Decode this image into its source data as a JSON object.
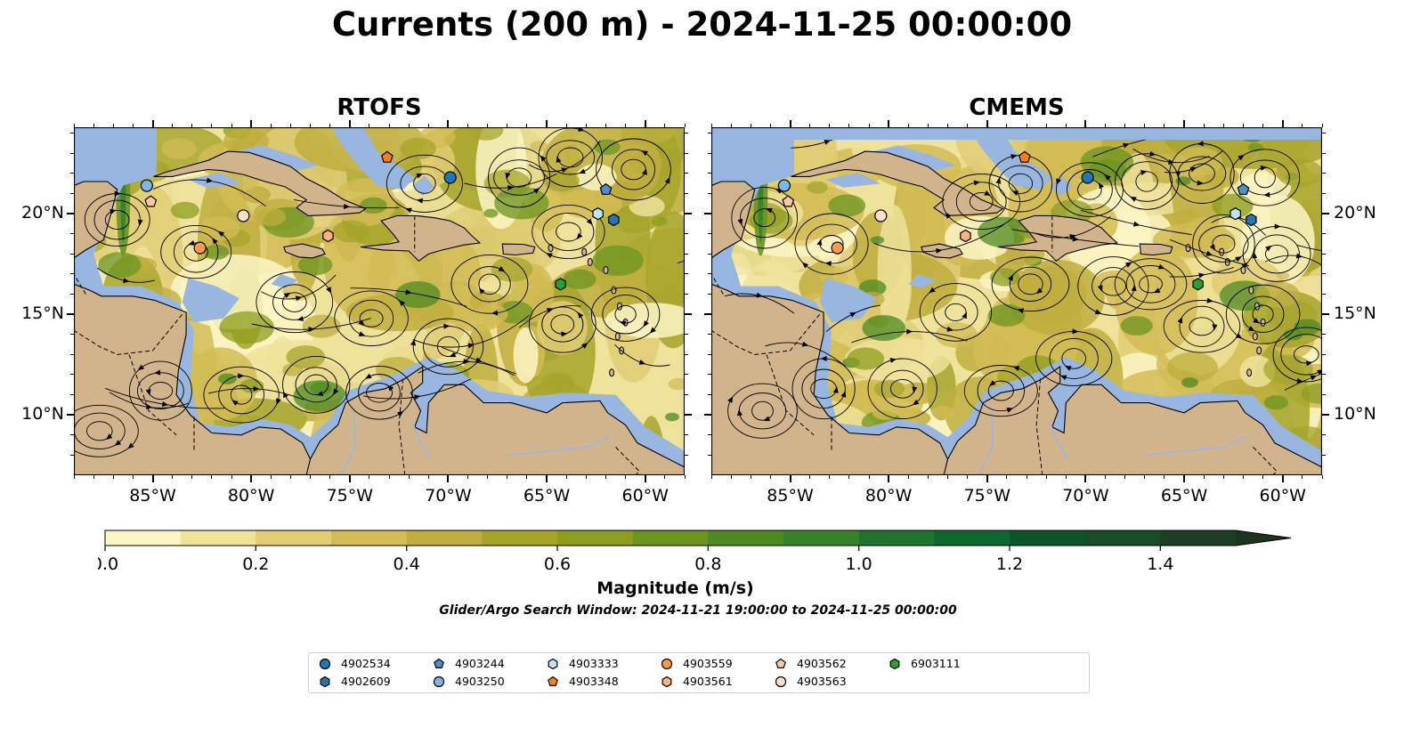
{
  "title": "Currents (200 m) - 2024-11-25 00:00:00",
  "panels": [
    {
      "name": "RTOFS"
    },
    {
      "name": "CMEMS"
    }
  ],
  "axes": {
    "lon_ticks": [
      "85°W",
      "80°W",
      "75°W",
      "70°W",
      "65°W",
      "60°W"
    ],
    "lat_ticks": [
      "20°N",
      "15°N",
      "10°N"
    ]
  },
  "colorbar": {
    "label": "Magnitude (m/s)",
    "ticks": [
      "0.0",
      "0.2",
      "0.4",
      "0.6",
      "0.8",
      "1.0",
      "1.2",
      "1.4"
    ],
    "colors": [
      "#fbf6c5",
      "#efe29a",
      "#e0cd74",
      "#d2bc55",
      "#bfae3e",
      "#a7a42c",
      "#8e9d1f",
      "#6c9420",
      "#4e8a22",
      "#358228",
      "#1e7430",
      "#0f6630",
      "#0b552a",
      "#174c29",
      "#1d3e24",
      "#1d3520"
    ]
  },
  "search_window": "Glider/Argo Search Window: 2024-11-21 19:00:00 to 2024-11-25 00:00:00",
  "map_colors": {
    "land": "#d2b48c",
    "shallow": "#99b6e0"
  },
  "legend": [
    {
      "id": "4902534",
      "marker": "circle",
      "color": "#1f77b4"
    },
    {
      "id": "4902609",
      "marker": "hexagon",
      "color": "#1f77b4"
    },
    {
      "id": "4903244",
      "marker": "pentagon",
      "color": "#4a8fce"
    },
    {
      "id": "4903250",
      "marker": "circle",
      "color": "#7eb7e6"
    },
    {
      "id": "4903333",
      "marker": "hexagon",
      "color": "#bfe2f5"
    },
    {
      "id": "4903348",
      "marker": "pentagon",
      "color": "#ff7f0e"
    },
    {
      "id": "4903559",
      "marker": "circle",
      "color": "#fd9a45"
    },
    {
      "id": "4903561",
      "marker": "hexagon",
      "color": "#fdb479"
    },
    {
      "id": "4903562",
      "marker": "pentagon",
      "color": "#fdc9a0"
    },
    {
      "id": "4903563",
      "marker": "circle",
      "color": "#fde0c8"
    },
    {
      "id": "6903111",
      "marker": "hexagon",
      "color": "#2ca02c"
    }
  ],
  "floats": [
    {
      "id": "4902534",
      "lon": -69.9,
      "lat": 21.8
    },
    {
      "id": "4902609",
      "lon": -61.6,
      "lat": 19.7
    },
    {
      "id": "4903244",
      "lon": -62.0,
      "lat": 21.2
    },
    {
      "id": "4903250",
      "lon": -85.3,
      "lat": 21.4
    },
    {
      "id": "4903333",
      "lon": -62.4,
      "lat": 20.0
    },
    {
      "id": "4903348",
      "lon": -73.1,
      "lat": 22.8
    },
    {
      "id": "4903559",
      "lon": -82.6,
      "lat": 18.3
    },
    {
      "id": "4903561",
      "lon": -76.1,
      "lat": 18.9
    },
    {
      "id": "4903562",
      "lon": -85.1,
      "lat": 20.6
    },
    {
      "id": "4903563",
      "lon": -80.4,
      "lat": 19.9
    },
    {
      "id": "6903111",
      "lon": -64.3,
      "lat": 16.5
    }
  ]
}
